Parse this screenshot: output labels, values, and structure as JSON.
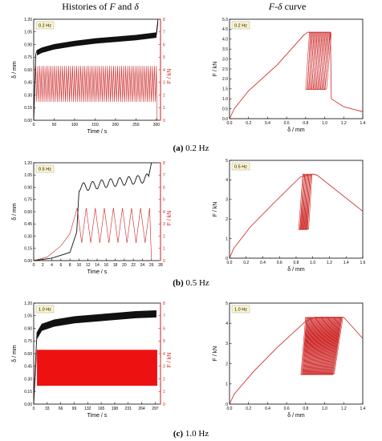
{
  "headers": {
    "left_pre": "Histories of ",
    "left_f": "F",
    "left_mid": " and ",
    "left_d": "δ",
    "right_f": "F",
    "right_dash": "-",
    "right_d": "δ",
    "right_post": " curve"
  },
  "captions": [
    {
      "id": "(a)",
      "text": "0.2 Hz"
    },
    {
      "id": "(b)",
      "text": "0.5 Hz"
    },
    {
      "id": "(c)",
      "text": "1.0 Hz"
    }
  ],
  "colors": {
    "displacement": "#111111",
    "force": "#cc2222",
    "fill": "#ee1111",
    "tag_bg": "#fff6cc"
  },
  "chart_data": [
    {
      "type": "line",
      "panel": "history-0.2Hz",
      "tag": "0.2 Hz",
      "xlabel": "Time / s",
      "ylabel_left": "δ / mm",
      "ylabel_right": "F / kN",
      "xlim": [
        0,
        310
      ],
      "ylim_left": [
        0,
        1.2
      ],
      "ylim_right": [
        0,
        8
      ],
      "xticks": [
        0,
        50,
        100,
        150,
        200,
        250,
        300
      ],
      "xticklabels": [
        "0",
        "50",
        "100",
        "150",
        "200",
        "250",
        "300"
      ],
      "yticks_left": [
        0,
        0.15,
        0.3,
        0.45,
        0.6,
        0.75,
        0.9,
        1.05,
        1.2
      ],
      "yticklabels_left": [
        "0.00",
        "0.15",
        "0.30",
        "0.45",
        "0.60",
        "0.75",
        "0.90",
        "1.05",
        "1.20"
      ],
      "yticks_right": [
        0,
        1,
        2,
        3,
        4,
        5,
        6,
        7,
        8
      ],
      "yticklabels_right": [
        "0",
        "1",
        "2",
        "3",
        "4",
        "5",
        "6",
        "7",
        "8"
      ],
      "series": [
        {
          "axis": "left",
          "points": [
            [
              0,
              0
            ],
            [
              2,
              0.3
            ],
            [
              5,
              0.78
            ],
            [
              8,
              0.83
            ],
            [
              20,
              0.86
            ],
            [
              50,
              0.9
            ],
            [
              100,
              0.94
            ],
            [
              150,
              0.97
            ],
            [
              200,
              0.99
            ],
            [
              250,
              1.01
            ],
            [
              300,
              1.04
            ],
            [
              304,
              1.2
            ]
          ],
          "band": 0.06
        },
        {
          "axis": "right",
          "points": [
            [
              0,
              0
            ],
            [
              5,
              4.2
            ],
            [
              300,
              4.2
            ],
            [
              302,
              0
            ]
          ],
          "cycle": {
            "start": 5,
            "end": 300,
            "period": 5,
            "min": 1.45,
            "max": 4.3
          }
        }
      ]
    },
    {
      "type": "line",
      "panel": "fd-0.2Hz",
      "tag": "0.2 Hz",
      "xlabel": "δ / mm",
      "ylabel": "F / kN",
      "xlim": [
        0,
        1.4
      ],
      "ylim": [
        0,
        5
      ],
      "xticks": [
        0,
        0.2,
        0.4,
        0.6,
        0.8,
        1.0,
        1.2,
        1.4
      ],
      "xticklabels": [
        "0.0",
        "0.2",
        "0.4",
        "0.6",
        "0.8",
        "1.0",
        "1.2",
        "1.4"
      ],
      "yticks": [
        0,
        0.5,
        1,
        1.5,
        2,
        2.5,
        3,
        3.5,
        4,
        4.5,
        5
      ],
      "yticklabels": [
        "0.0",
        "0.5",
        "1.0",
        "1.5",
        "2.0",
        "2.5",
        "3.0",
        "3.5",
        "4.0",
        "4.5",
        "5.0"
      ],
      "envelope": [
        [
          0,
          0
        ],
        [
          0.05,
          0.5
        ],
        [
          0.2,
          1.4
        ],
        [
          0.5,
          2.7
        ],
        [
          0.78,
          4.2
        ],
        [
          0.82,
          4.35
        ],
        [
          1.06,
          4.35
        ],
        [
          1.07,
          1.0
        ],
        [
          1.2,
          0.6
        ],
        [
          1.4,
          0.35
        ]
      ],
      "loops": {
        "x_start": [
          0.8,
          1.0
        ],
        "x_end": [
          0.84,
          1.06
        ],
        "min": 1.45,
        "max": 4.35,
        "count": 14
      }
    },
    {
      "type": "line",
      "panel": "history-0.5Hz",
      "tag": "0.5 Hz",
      "xlabel": "Time / s",
      "ylabel_left": "δ / mm",
      "ylabel_right": "F / kN",
      "xlim": [
        0,
        28
      ],
      "ylim_left": [
        0,
        1.2
      ],
      "ylim_right": [
        0,
        8
      ],
      "xticks": [
        0,
        2,
        4,
        6,
        8,
        10,
        12,
        14,
        16,
        18,
        20,
        22,
        24,
        26,
        28
      ],
      "xticklabels": [
        "0",
        "2",
        "4",
        "6",
        "8",
        "10",
        "12",
        "14",
        "16",
        "18",
        "20",
        "22",
        "24",
        "26",
        "28"
      ],
      "yticks_left": [
        0,
        0.15,
        0.3,
        0.45,
        0.6,
        0.75,
        0.9,
        1.05,
        1.2
      ],
      "yticklabels_left": [
        "0.00",
        "0.15",
        "0.30",
        "0.45",
        "0.60",
        "0.75",
        "0.90",
        "1.05",
        "1.20"
      ],
      "yticks_right": [
        0,
        1,
        2,
        3,
        4,
        5,
        6,
        7,
        8
      ],
      "yticklabels_right": [
        "0",
        "1",
        "2",
        "3",
        "4",
        "5",
        "6",
        "7",
        "8"
      ],
      "series": [
        {
          "axis": "left",
          "points": [
            [
              0,
              0
            ],
            [
              4,
              0.03
            ],
            [
              8,
              0.1
            ],
            [
              9.5,
              0.35
            ],
            [
              10,
              0.85
            ],
            [
              12,
              0.86
            ],
            [
              15,
              0.89
            ],
            [
              18,
              0.91
            ],
            [
              21,
              0.93
            ],
            [
              24,
              0.95
            ],
            [
              25.5,
              0.97
            ],
            [
              26,
              1.2
            ]
          ],
          "wave_amp": 0.05,
          "wave_start": 10,
          "wave_end": 25.5,
          "wave_period": 2
        },
        {
          "axis": "right",
          "points": [
            [
              0,
              0
            ],
            [
              3,
              0.3
            ],
            [
              6,
              1.2
            ],
            [
              8,
              2.2
            ],
            [
              9.6,
              4.3
            ]
          ],
          "cycle": {
            "start": 9.6,
            "end": 25.6,
            "period": 2,
            "min": 1.45,
            "max": 4.3
          },
          "tail": [
            [
              25.6,
              4.3
            ],
            [
              26,
              0
            ]
          ]
        }
      ]
    },
    {
      "type": "line",
      "panel": "fd-0.5Hz",
      "tag": "0.5 Hz",
      "xlabel": "δ / mm",
      "ylabel": "F / kN",
      "xlim": [
        0,
        1.6
      ],
      "ylim": [
        0,
        5
      ],
      "xticks": [
        0,
        0.2,
        0.4,
        0.6,
        0.8,
        1.0,
        1.2,
        1.4,
        1.6
      ],
      "xticklabels": [
        "0.0",
        "0.2",
        "0.4",
        "0.6",
        "0.8",
        "1.0",
        "1.2",
        "1.4",
        "1.6"
      ],
      "yticks": [
        0,
        1,
        2,
        3,
        4,
        5
      ],
      "yticklabels": [
        "0",
        "1",
        "2",
        "3",
        "4",
        "5"
      ],
      "envelope": [
        [
          0,
          0
        ],
        [
          0.05,
          0.5
        ],
        [
          0.25,
          1.6
        ],
        [
          0.55,
          2.9
        ],
        [
          0.85,
          4.15
        ],
        [
          0.9,
          4.2
        ],
        [
          1.0,
          4.3
        ],
        [
          1.05,
          4.25
        ],
        [
          1.6,
          2.4
        ]
      ],
      "loops": {
        "x_start": [
          0.83,
          0.93
        ],
        "x_end": [
          0.88,
          0.98
        ],
        "min": 1.45,
        "max": 4.3,
        "count": 9
      }
    },
    {
      "type": "line",
      "panel": "history-1.0Hz",
      "tag": "1.0 Hz",
      "xlabel": "Time / s",
      "ylabel_left": "δ / mm",
      "ylabel_right": "F / kN",
      "xlim": [
        0,
        310
      ],
      "ylim_left": [
        0,
        1.2
      ],
      "ylim_right": [
        0,
        8
      ],
      "xticks": [
        0,
        33,
        66,
        99,
        132,
        165,
        198,
        231,
        264,
        297
      ],
      "xticklabels": [
        "0",
        "33",
        "66",
        "99",
        "132",
        "165",
        "198",
        "231",
        "264",
        "297"
      ],
      "yticks_left": [
        0,
        0.15,
        0.3,
        0.45,
        0.6,
        0.75,
        0.9,
        1.05,
        1.2
      ],
      "yticklabels_left": [
        "0.00",
        "0.15",
        "0.30",
        "0.45",
        "0.60",
        "0.75",
        "0.90",
        "1.05",
        "1.20"
      ],
      "yticks_right": [
        0,
        1,
        2,
        3,
        4,
        5,
        6,
        7,
        8
      ],
      "yticklabels_right": [
        "0",
        "1",
        "2",
        "3",
        "4",
        "5",
        "6",
        "7",
        "8"
      ],
      "series": [
        {
          "axis": "left",
          "points": [
            [
              0,
              0
            ],
            [
              3,
              0.35
            ],
            [
              8,
              0.85
            ],
            [
              20,
              0.95
            ],
            [
              50,
              1.0
            ],
            [
              100,
              1.04
            ],
            [
              150,
              1.06
            ],
            [
              200,
              1.08
            ],
            [
              250,
              1.1
            ],
            [
              300,
              1.11
            ]
          ],
          "band": 0.08
        },
        {
          "axis": "right",
          "points": [
            [
              0,
              0
            ],
            [
              8,
              4.3
            ]
          ],
          "cycle": {
            "start": 8,
            "end": 302,
            "period": 1,
            "min": 1.45,
            "max": 4.3
          }
        }
      ]
    },
    {
      "type": "line",
      "panel": "fd-1.0Hz",
      "tag": "1.0 Hz",
      "xlabel": "δ / mm",
      "ylabel": "F / kN",
      "xlim": [
        0,
        1.4
      ],
      "ylim": [
        0,
        5
      ],
      "xticks": [
        0,
        0.2,
        0.4,
        0.6,
        0.8,
        1.0,
        1.2,
        1.4
      ],
      "xticklabels": [
        "0.0",
        "0.2",
        "0.4",
        "0.6",
        "0.8",
        "1.0",
        "1.2",
        "1.4"
      ],
      "yticks": [
        0,
        1,
        2,
        3,
        4,
        5
      ],
      "yticklabels": [
        "0",
        "1",
        "2",
        "3",
        "4",
        "5"
      ],
      "envelope": [
        [
          0,
          0
        ],
        [
          0.05,
          0.5
        ],
        [
          0.25,
          1.6
        ],
        [
          0.5,
          2.8
        ],
        [
          0.8,
          4.1
        ],
        [
          0.9,
          4.3
        ],
        [
          1.2,
          4.3
        ],
        [
          1.4,
          3.25
        ]
      ],
      "loops": {
        "x_start": [
          0.75,
          1.08
        ],
        "x_end": [
          0.8,
          1.18
        ],
        "min": 1.45,
        "max": 4.3,
        "count": 40
      }
    }
  ]
}
